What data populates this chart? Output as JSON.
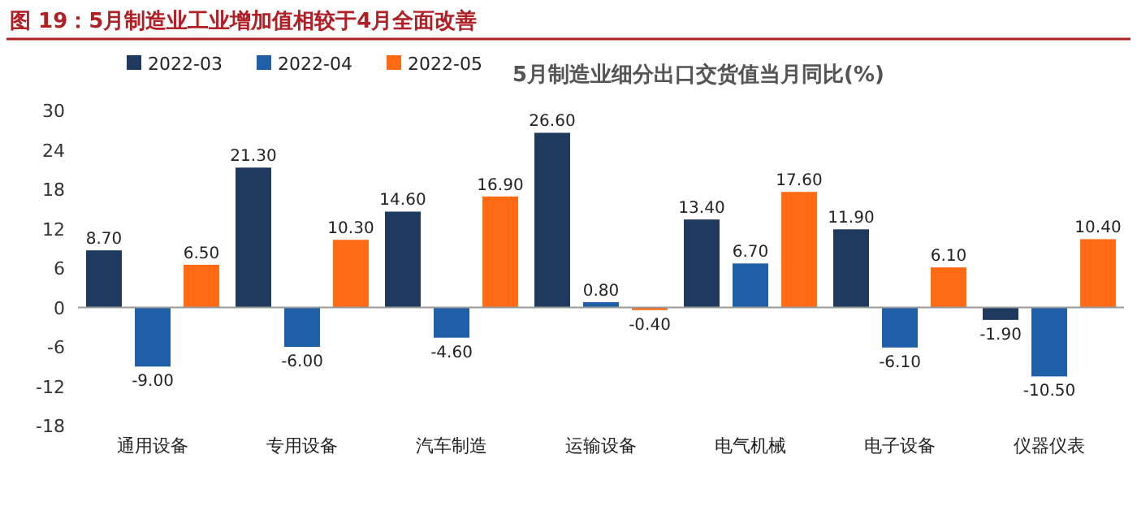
{
  "chart_data": {
    "type": "bar",
    "title": "图 19：5月制造业工业增加值相较于4月全面改善",
    "subtitle": "5月制造业细分出口交货值当月同比(%)",
    "categories": [
      "通用设备",
      "专用设备",
      "汽车制造",
      "运输设备",
      "电气机械",
      "电子设备",
      "仪器仪表"
    ],
    "series": [
      {
        "name": "2022-03",
        "color": "#1f3a5f",
        "values": [
          8.7,
          21.3,
          14.6,
          26.6,
          13.4,
          11.9,
          -1.9
        ],
        "value_labels": [
          "8.70",
          "21.30",
          "14.60",
          "26.60",
          "13.40",
          "11.90",
          "-1.90"
        ]
      },
      {
        "name": "2022-04",
        "color": "#1f5fa8",
        "values": [
          -9,
          -6,
          -4.6,
          0.8,
          6.7,
          -6.1,
          -10.5
        ],
        "value_labels": [
          "-9.00",
          "-6.00",
          "-4.60",
          "0.80",
          "6.70",
          "-6.10",
          "-10.50"
        ]
      },
      {
        "name": "2022-05",
        "color": "#ff6a13",
        "values": [
          6.5,
          10.3,
          16.9,
          -0.4,
          17.6,
          6.1,
          10.4
        ],
        "value_labels": [
          "6.50",
          "10.30",
          "16.90",
          "-0.40",
          "17.60",
          "6.10",
          "10.40"
        ]
      }
    ],
    "ylim": [
      -18,
      30
    ],
    "yticks": [
      -18,
      -12,
      -6,
      0,
      6,
      12,
      18,
      24,
      30
    ],
    "legend": "top left"
  }
}
